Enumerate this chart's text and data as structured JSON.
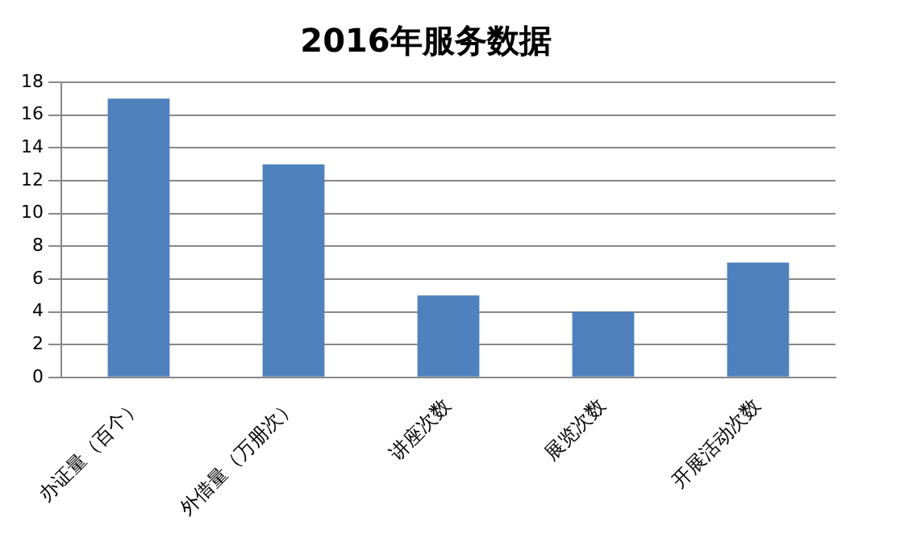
{
  "chart_data": {
    "type": "bar",
    "title": "2016年服务数据",
    "categories": [
      "办证量（百个）",
      "外借量（万册次）",
      "讲座次数",
      "展览次数",
      "开展活动次数"
    ],
    "values": [
      17,
      13,
      5,
      4,
      7
    ],
    "color": "#4f81bd",
    "ylim": [
      0,
      18
    ],
    "yticks": [
      0,
      2,
      4,
      6,
      8,
      10,
      12,
      14,
      16,
      18
    ],
    "grid": "y"
  }
}
